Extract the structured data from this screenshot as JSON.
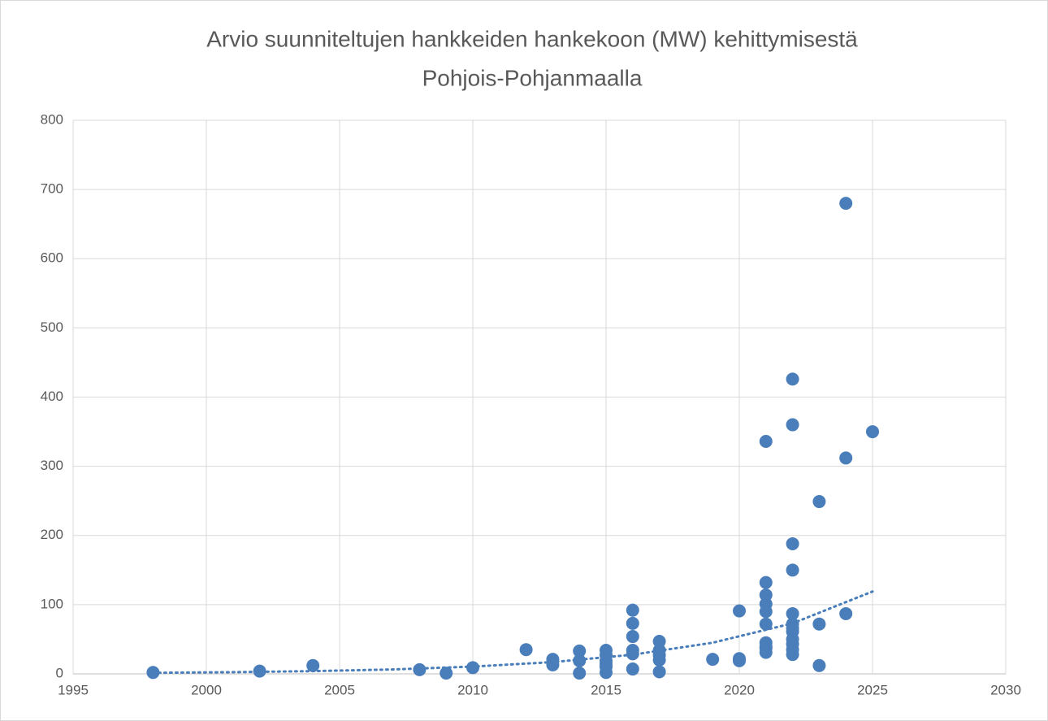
{
  "chart_data": {
    "type": "scatter",
    "title": [
      "Arvio suunniteltujen hankkeiden hankekoon (MW) kehittymisestä",
      "Pohjois-Pohjanmaalla"
    ],
    "color": "#4a7ebb",
    "x": [
      1998,
      2002,
      2004,
      2008,
      2009,
      2010,
      2012,
      2013,
      2013,
      2014,
      2014,
      2014,
      2015,
      2015,
      2015,
      2015,
      2015,
      2015,
      2016,
      2016,
      2016,
      2016,
      2016,
      2016,
      2017,
      2017,
      2017,
      2017,
      2017,
      2019,
      2020,
      2020,
      2020,
      2021,
      2021,
      2021,
      2021,
      2021,
      2021,
      2021,
      2021,
      2021,
      2021,
      2022,
      2022,
      2022,
      2022,
      2022,
      2022,
      2022,
      2022,
      2022,
      2022,
      2022,
      2022,
      2023,
      2023,
      2023,
      2024,
      2024,
      2024,
      2025
    ],
    "values": [
      2,
      4,
      12,
      6,
      1,
      9,
      35,
      21,
      13,
      33,
      19,
      1,
      34,
      27,
      19,
      14,
      10,
      2,
      92,
      73,
      54,
      34,
      29,
      7,
      47,
      34,
      27,
      20,
      3,
      21,
      91,
      22,
      19,
      336,
      132,
      114,
      101,
      90,
      72,
      45,
      39,
      37,
      31,
      426,
      360,
      188,
      150,
      87,
      72,
      66,
      61,
      50,
      43,
      35,
      28,
      249,
      72,
      12,
      680,
      312,
      87,
      350
    ],
    "trendline": {
      "x": [
        1998,
        2001,
        2004,
        2007,
        2010,
        2013,
        2016,
        2019,
        2022,
        2025
      ],
      "values": [
        1.5,
        2.44,
        3.96,
        6.4,
        10.5,
        17,
        27.7,
        45,
        73,
        119
      ]
    },
    "xlim": [
      1995,
      2030
    ],
    "xticks": [
      1995,
      2000,
      2005,
      2010,
      2015,
      2020,
      2025,
      2030
    ],
    "ylim": [
      0,
      800
    ],
    "yticks": [
      0,
      100,
      200,
      300,
      400,
      500,
      600,
      700,
      800
    ],
    "grid": true
  }
}
